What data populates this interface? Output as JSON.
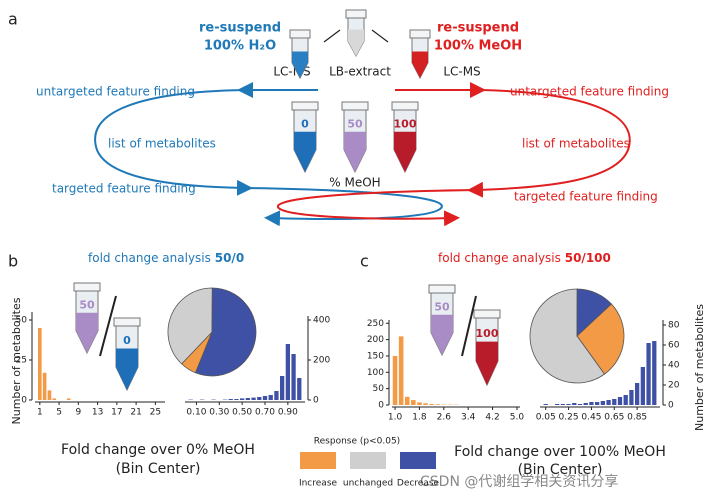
{
  "figure": {
    "panel_a": {
      "label": "a",
      "resuspend_left": "re-suspend",
      "solvent_left": "100% H₂O",
      "lcms_left": "LC-MS",
      "extract": "LB-extract",
      "resuspend_right": "re-suspend",
      "solvent_right": "100% MeOH",
      "lcms_right": "LC-MS",
      "left_untargeted": "untargeted feature finding",
      "left_list": "list of metabolites",
      "left_targeted": "targeted feature finding",
      "right_untargeted": "untargeted feature finding",
      "right_list": "list of metabolites",
      "right_targeted": "targeted feature finding",
      "tube_labels": [
        "0",
        "50",
        "100"
      ],
      "meoh": "% MeOH"
    },
    "panel_b": {
      "label": "b",
      "title_prefix": "fold change analysis",
      "title_ratio": "50/0",
      "tube_labels": [
        "50",
        "0"
      ],
      "xlabel": "Fold change over 0% MeOH",
      "xlabel2": "(Bin Center)"
    },
    "panel_c": {
      "label": "c",
      "title_prefix": "fold change analysis",
      "title_ratio": "50/100",
      "tube_labels": [
        "50",
        "100"
      ],
      "xlabel": "Fold change over 100% MeOH",
      "xlabel2": "(Bin Center)"
    },
    "legend": {
      "title": "Response (p<0.05)",
      "items": [
        "Increase",
        "unchanged",
        "Decrease"
      ],
      "colors": [
        "#f29a45",
        "#cfcfcf",
        "#3f51a5"
      ]
    },
    "watermark": "CSDN @代谢组学相关资讯分享"
  },
  "chart_data": [
    {
      "type": "histogram",
      "ylabel": "Number of metabolites",
      "color": "#f29a45",
      "x": [
        1,
        2,
        3,
        4,
        5,
        6,
        7,
        8
      ],
      "values": [
        45,
        17,
        6,
        1,
        0,
        0,
        1,
        0
      ],
      "xlim": [
        0,
        27
      ],
      "xticks": [
        1,
        5,
        9,
        13,
        17,
        21,
        25
      ],
      "ylim": [
        0,
        55
      ],
      "yticks": [
        0,
        25,
        50
      ]
    },
    {
      "type": "pie",
      "values": [
        6,
        38,
        56
      ]
    },
    {
      "type": "histogram",
      "color": "#3f51a5",
      "x": [
        0.05,
        0.1,
        0.15,
        0.2,
        0.25,
        0.3,
        0.35,
        0.4,
        0.45,
        0.5,
        0.55,
        0.6,
        0.65,
        0.7,
        0.75,
        0.8,
        0.85,
        0.9,
        0.95,
        1.0
      ],
      "values": [
        2,
        0,
        2,
        0,
        2,
        0,
        2,
        5,
        5,
        8,
        10,
        12,
        15,
        20,
        25,
        45,
        120,
        280,
        230,
        110
      ],
      "xlim": [
        0,
        1.05
      ],
      "xticks": [
        {
          "value": 0.1,
          "label": "0.10"
        },
        {
          "value": 0.3,
          "label": "0.30"
        },
        {
          "value": 0.5,
          "label": "0.50"
        },
        {
          "value": 0.7,
          "label": "0.70"
        },
        {
          "value": 0.9,
          "label": "0.90"
        }
      ],
      "ylim": [
        0,
        420
      ],
      "yticks": [
        0,
        200,
        400
      ]
    },
    {
      "type": "histogram",
      "color": "#f29a45",
      "x": [
        1.0,
        1.2,
        1.4,
        1.6,
        1.8,
        2.0,
        2.2,
        2.4,
        2.6,
        2.8,
        3.0
      ],
      "values": [
        150,
        210,
        25,
        15,
        8,
        5,
        3,
        2,
        1,
        1,
        1
      ],
      "xlim": [
        0.9,
        5.1
      ],
      "xticks": [
        {
          "value": 1.0,
          "label": "1.0"
        },
        {
          "value": 1.8,
          "label": "1.8"
        },
        {
          "value": 2.6,
          "label": "2.6"
        },
        {
          "value": 3.4,
          "label": "3.4"
        },
        {
          "value": 4.2,
          "label": "4.2"
        },
        {
          "value": 5.0,
          "label": "5.0"
        }
      ],
      "ylim": [
        0,
        260
      ],
      "yticks": [
        0,
        50,
        100,
        150,
        200,
        250
      ]
    },
    {
      "type": "pie",
      "values": [
        27,
        60,
        13
      ]
    },
    {
      "type": "histogram",
      "ylabel": "Number of metabolites",
      "color": "#3f51a5",
      "x": [
        0.05,
        0.1,
        0.15,
        0.2,
        0.25,
        0.3,
        0.35,
        0.4,
        0.45,
        0.5,
        0.55,
        0.6,
        0.65,
        0.7,
        0.75,
        0.8,
        0.85,
        0.9,
        0.95,
        1.0
      ],
      "values": [
        1,
        0,
        1,
        1,
        1,
        2,
        1,
        2,
        3,
        3,
        4,
        5,
        6,
        8,
        10,
        15,
        22,
        38,
        62,
        64
      ],
      "xlim": [
        0,
        1.05
      ],
      "xticks": [
        {
          "value": 0.05,
          "label": "0.05"
        },
        {
          "value": 0.25,
          "label": "0.25"
        },
        {
          "value": 0.45,
          "label": "0.45"
        },
        {
          "value": 0.65,
          "label": "0.65"
        },
        {
          "value": 0.85,
          "label": "0.85"
        }
      ],
      "ylim": [
        0,
        85
      ],
      "yticks": [
        0,
        20,
        40,
        60,
        80
      ]
    }
  ]
}
